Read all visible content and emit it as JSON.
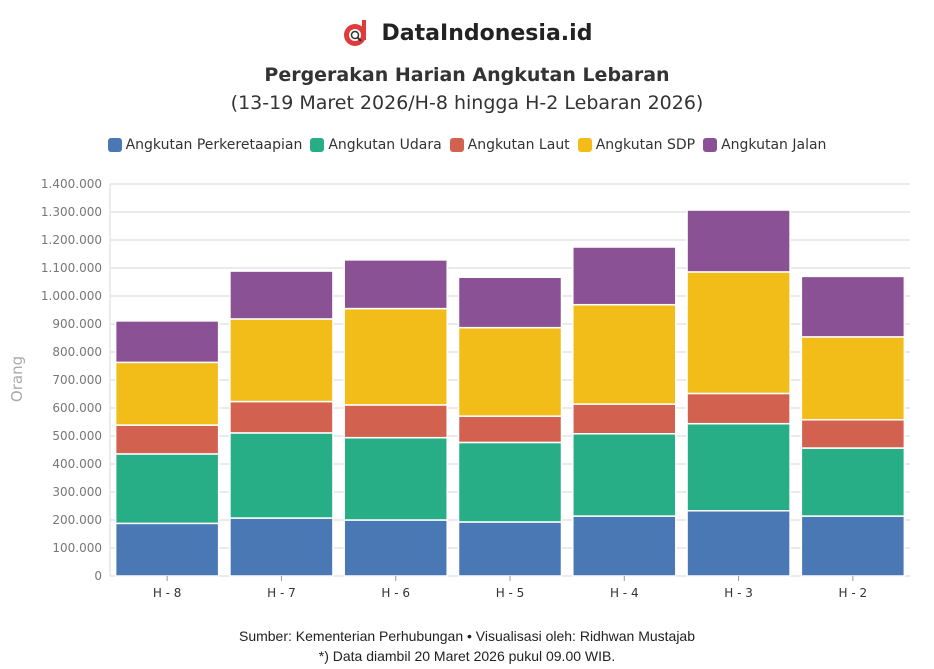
{
  "brand": {
    "name": "DataIndonesia.id"
  },
  "chart_data": {
    "type": "bar",
    "stacked": true,
    "title": "Pergerakan Harian Angkutan Lebaran",
    "subtitle": "(13-19 Maret 2026/H-8 hingga H-2 Lebaran 2026)",
    "xlabel": "",
    "ylabel": "Orang",
    "ylim": [
      0,
      1400000
    ],
    "yticks": [
      "0",
      "100.000",
      "200.000",
      "300.000",
      "400.000",
      "500.000",
      "600.000",
      "700.000",
      "800.000",
      "900.000",
      "1.000.000",
      "1.100.000",
      "1.200.000",
      "1.300.000",
      "1.400.000"
    ],
    "grid": true,
    "legend_position": "top",
    "categories": [
      "H - 8",
      "H - 7",
      "H - 6",
      "H - 5",
      "H - 4",
      "H - 3",
      "H - 2"
    ],
    "series": [
      {
        "name": "Angkutan Perkeretaapian",
        "color": "#4a78b4",
        "values": [
          188000,
          207000,
          200000,
          193000,
          214000,
          233000,
          214000
        ]
      },
      {
        "name": "Angkutan Udara",
        "color": "#27ae86",
        "values": [
          248000,
          304000,
          294000,
          284000,
          294000,
          311000,
          243000
        ]
      },
      {
        "name": "Angkutan Laut",
        "color": "#d36150",
        "values": [
          103000,
          112000,
          117000,
          94000,
          106000,
          108000,
          101000
        ]
      },
      {
        "name": "Angkutan SDP",
        "color": "#f2bc19",
        "values": [
          224000,
          295000,
          344000,
          316000,
          355000,
          434000,
          296000
        ]
      },
      {
        "name": "Angkutan Jalan",
        "color": "#8b5195",
        "values": [
          148000,
          171000,
          174000,
          180000,
          206000,
          221000,
          216000
        ]
      }
    ]
  },
  "footer": {
    "source": "Sumber: Kementerian Perhubungan • Visualisasi oleh: Ridhwan Mustajab",
    "note": "*) Data diambil 20 Maret 2026 pukul 09.00 WIB."
  }
}
